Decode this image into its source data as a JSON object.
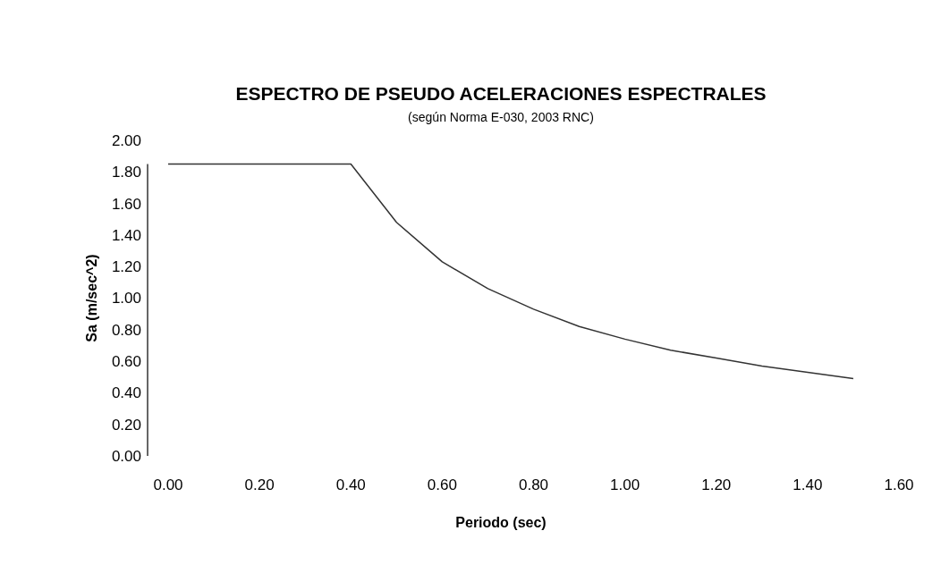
{
  "chart_data": {
    "type": "line",
    "title": "ESPECTRO DE PSEUDO ACELERACIONES ESPECTRALES",
    "subtitle": "(según Norma E-030, 2003 RNC)",
    "xlabel": "Periodo (sec)",
    "ylabel": "Sa (m/sec^2)",
    "x": [
      0,
      0.4,
      0.5,
      0.6,
      0.7,
      0.8,
      0.9,
      1.0,
      1.1,
      1.2,
      1.3,
      1.4,
      1.5
    ],
    "series": [
      {
        "color": "#333333",
        "values": [
          1.85,
          1.85,
          1.48,
          1.23,
          1.06,
          0.93,
          0.82,
          0.74,
          0.67,
          0.62,
          0.57,
          0.53,
          0.49
        ]
      }
    ],
    "xlim": [
      0,
      1.6
    ],
    "xticks": [
      {
        "value": 0,
        "label": "0.00"
      },
      {
        "value": 0.2,
        "label": "0.20"
      },
      {
        "value": 0.4,
        "label": "0.40"
      },
      {
        "value": 0.6,
        "label": "0.60"
      },
      {
        "value": 0.8,
        "label": "0.80"
      },
      {
        "value": 1.0,
        "label": "1.00"
      },
      {
        "value": 1.2,
        "label": "1.20"
      },
      {
        "value": 1.4,
        "label": "1.40"
      },
      {
        "value": 1.6,
        "label": "1.60"
      }
    ],
    "ylim": [
      0,
      2
    ],
    "yticks": [
      {
        "value": 0,
        "label": "0.00"
      },
      {
        "value": 0.2,
        "label": "0.20"
      },
      {
        "value": 0.4,
        "label": "0.40"
      },
      {
        "value": 0.6,
        "label": "0.60"
      },
      {
        "value": 0.8,
        "label": "0.80"
      },
      {
        "value": 1.0,
        "label": "1.00"
      },
      {
        "value": 1.2,
        "label": "1.20"
      },
      {
        "value": 1.4,
        "label": "1.40"
      },
      {
        "value": 1.6,
        "label": "1.60"
      },
      {
        "value": 1.8,
        "label": "1.80"
      },
      {
        "value": 2.0,
        "label": "2.00"
      }
    ],
    "line_style": "solid",
    "marker": "none"
  }
}
